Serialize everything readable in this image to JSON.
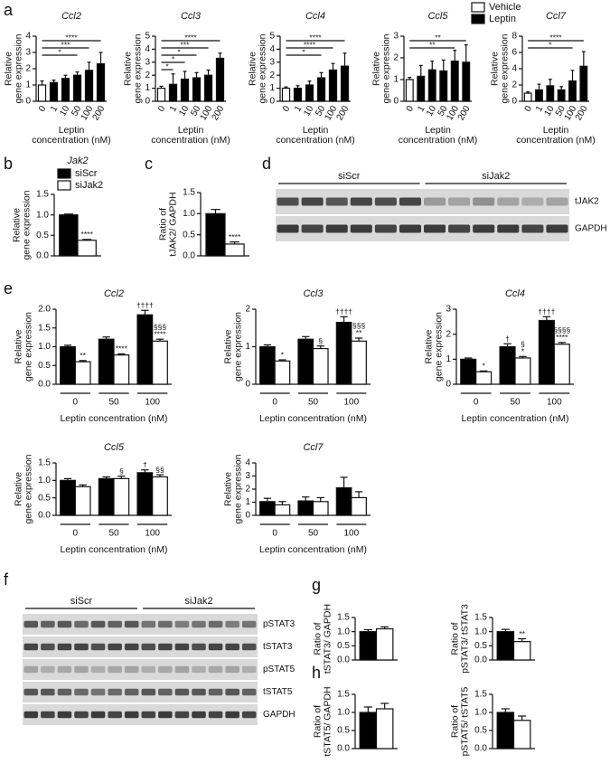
{
  "panel_labels": [
    "a",
    "b",
    "c",
    "d",
    "e",
    "f",
    "g",
    "h"
  ],
  "legend_a": [
    {
      "name": "Vehicle",
      "color": "#ffffff"
    },
    {
      "name": "Leptin",
      "color": "#000000"
    }
  ],
  "legend_b": [
    {
      "name": "siScr",
      "color": "#000000"
    },
    {
      "name": "siJak2",
      "color": "#ffffff"
    }
  ],
  "blot_d": {
    "groups": [
      "siScr",
      "siJak2"
    ],
    "rows": [
      "tJAK2",
      "GAPDH"
    ]
  },
  "blot_f": {
    "groups": [
      "siScr",
      "siJak2"
    ],
    "rows": [
      "pSTAT3",
      "tSTAT3",
      "pSTAT5",
      "tSTAT5",
      "GAPDH"
    ]
  },
  "chart_data": [
    {
      "type": "bar",
      "title": "Ccl2",
      "ylabel": [
        "Relative",
        "gene expression"
      ],
      "xlabel": [
        "Leptin",
        "concentration (nM)"
      ],
      "categories": [
        "0",
        "1",
        "10",
        "50",
        "100",
        "200"
      ],
      "ylim": [
        0,
        4
      ],
      "yticks": [
        0,
        1,
        2,
        3,
        4
      ],
      "series": [
        {
          "color": "#ffffff",
          "values": [
            1.0,
            null,
            null,
            null,
            null,
            null
          ],
          "errors": [
            0.25,
            null,
            null,
            null,
            null,
            null
          ]
        },
        {
          "color": "#000000",
          "values": [
            null,
            1.15,
            1.4,
            1.6,
            1.9,
            2.3
          ],
          "errors": [
            null,
            0.15,
            0.2,
            0.2,
            0.5,
            0.7
          ]
        }
      ],
      "brackets": [
        {
          "label": "****",
          "from": "0",
          "to": "200"
        },
        {
          "label": "***",
          "from": "0",
          "to": "100"
        },
        {
          "label": "*",
          "from": "0",
          "to": "50"
        }
      ]
    },
    {
      "type": "bar",
      "title": "Ccl3",
      "ylabel": [
        "Relative",
        "gene expression"
      ],
      "xlabel": [
        "Leptin",
        "concentration (nM)"
      ],
      "categories": [
        "0",
        "1",
        "10",
        "50",
        "100",
        "200"
      ],
      "ylim": [
        0,
        5
      ],
      "yticks": [
        0,
        1,
        2,
        3,
        4,
        5
      ],
      "series": [
        {
          "color": "#ffffff",
          "values": [
            1.0,
            null,
            null,
            null,
            null,
            null
          ],
          "errors": [
            0.15,
            null,
            null,
            null,
            null,
            null
          ]
        },
        {
          "color": "#000000",
          "values": [
            null,
            1.3,
            1.7,
            1.8,
            2.0,
            3.3
          ],
          "errors": [
            null,
            0.8,
            0.6,
            0.4,
            0.4,
            0.4
          ]
        }
      ],
      "brackets": [
        {
          "label": "****",
          "from": "0",
          "to": "200"
        },
        {
          "label": "***",
          "from": "0",
          "to": "100"
        },
        {
          "label": "*",
          "from": "0",
          "to": "50"
        },
        {
          "label": "*",
          "from": "0",
          "to": "10"
        },
        {
          "label": "*",
          "from": "0",
          "to": "1"
        }
      ]
    },
    {
      "type": "bar",
      "title": "Ccl4",
      "ylabel": [
        "Relative",
        "gene expression"
      ],
      "xlabel": [
        "Leptin",
        "concentration (nM)"
      ],
      "categories": [
        "0",
        "1",
        "10",
        "50",
        "100",
        "200"
      ],
      "ylim": [
        0,
        5
      ],
      "yticks": [
        0,
        1,
        2,
        3,
        4,
        5
      ],
      "series": [
        {
          "color": "#ffffff",
          "values": [
            1.0,
            null,
            null,
            null,
            null,
            null
          ],
          "errors": [
            0.1,
            null,
            null,
            null,
            null,
            null
          ]
        },
        {
          "color": "#000000",
          "values": [
            null,
            1.0,
            1.25,
            1.8,
            2.4,
            2.7
          ],
          "errors": [
            null,
            0.2,
            0.3,
            0.4,
            0.5,
            1.0
          ]
        }
      ],
      "brackets": [
        {
          "label": "****",
          "from": "0",
          "to": "200"
        },
        {
          "label": "****",
          "from": "0",
          "to": "100"
        },
        {
          "label": "*",
          "from": "0",
          "to": "50"
        }
      ]
    },
    {
      "type": "bar",
      "title": "Ccl5",
      "ylabel": [
        "Relative",
        "gene expression"
      ],
      "xlabel": [
        "Leptin",
        "concentration (nM)"
      ],
      "categories": [
        "0",
        "1",
        "10",
        "50",
        "100",
        "200"
      ],
      "ylim": [
        0,
        3
      ],
      "yticks": [
        0,
        1,
        2,
        3
      ],
      "series": [
        {
          "color": "#ffffff",
          "values": [
            1.0,
            null,
            null,
            null,
            null,
            null
          ],
          "errors": [
            0.1,
            null,
            null,
            null,
            null,
            null
          ]
        },
        {
          "color": "#000000",
          "values": [
            null,
            1.15,
            1.45,
            1.4,
            1.85,
            1.8
          ],
          "errors": [
            null,
            0.5,
            0.4,
            0.5,
            0.5,
            0.8
          ]
        }
      ],
      "brackets": [
        {
          "label": "**",
          "from": "0",
          "to": "200"
        },
        {
          "label": "**",
          "from": "0",
          "to": "100"
        }
      ]
    },
    {
      "type": "bar",
      "title": "Ccl7",
      "ylabel": [
        "Relative",
        "gene expression"
      ],
      "xlabel": [
        "Leptin",
        "concentration (nM)"
      ],
      "categories": [
        "0",
        "1",
        "10",
        "50",
        "100",
        "200"
      ],
      "ylim": [
        0,
        8
      ],
      "yticks": [
        0,
        2,
        4,
        6,
        8
      ],
      "series": [
        {
          "color": "#ffffff",
          "values": [
            1.0,
            null,
            null,
            null,
            null,
            null
          ],
          "errors": [
            0.15,
            null,
            null,
            null,
            null,
            null
          ]
        },
        {
          "color": "#000000",
          "values": [
            null,
            1.4,
            1.9,
            1.4,
            2.5,
            4.3
          ],
          "errors": [
            null,
            0.7,
            0.8,
            0.4,
            1.3,
            1.8
          ]
        }
      ],
      "brackets": [
        {
          "label": "****",
          "from": "0",
          "to": "200"
        },
        {
          "label": "*",
          "from": "0",
          "to": "100"
        }
      ]
    },
    {
      "type": "bar",
      "title": "Jak2",
      "ylabel": [
        "Relative",
        "gene expression"
      ],
      "ylim": [
        0,
        1.5
      ],
      "yticks": [
        {
          "value": 0,
          "label": "0.0"
        },
        {
          "value": 0.5,
          "label": "0.5"
        },
        {
          "value": 1,
          "label": "1.0"
        },
        {
          "value": 1.5,
          "label": "1.5"
        }
      ],
      "series": [
        {
          "color": "#000000",
          "values": [
            1.0
          ],
          "errors": [
            0.02
          ]
        },
        {
          "color": "#ffffff",
          "values": [
            0.38
          ],
          "errors": [
            0.02
          ],
          "annotations": [
            "****"
          ]
        }
      ]
    },
    {
      "type": "bar",
      "ylabel": [
        "Ratio of",
        "tJAK2/ GAPDH"
      ],
      "ylim": [
        0,
        1.5
      ],
      "yticks": [
        {
          "value": 0,
          "label": "0.0"
        },
        {
          "value": 0.5,
          "label": "0.5"
        },
        {
          "value": 1,
          "label": "1.0"
        },
        {
          "value": 1.5,
          "label": "1.5"
        }
      ],
      "series": [
        {
          "color": "#000000",
          "values": [
            1.0
          ],
          "errors": [
            0.1
          ]
        },
        {
          "color": "#ffffff",
          "values": [
            0.28
          ],
          "errors": [
            0.05
          ],
          "annotations": [
            "****"
          ]
        }
      ]
    },
    {
      "type": "bar",
      "title": "Ccl2",
      "ylabel": [
        "Relative",
        "gene expression"
      ],
      "xlabel": [
        "Leptin concentration (nM)"
      ],
      "categories": [
        "0",
        "50",
        "100"
      ],
      "ylim": [
        0,
        2
      ],
      "yticks": [
        {
          "value": 0,
          "label": "0.0"
        },
        {
          "value": 0.5,
          "label": "0.5"
        },
        {
          "value": 1,
          "label": "1.0"
        },
        {
          "value": 1.5,
          "label": "1.5"
        },
        {
          "value": 2,
          "label": "2.0"
        }
      ],
      "series": [
        {
          "color": "#000000",
          "values": [
            1.0,
            1.2,
            1.85
          ],
          "errors": [
            0.04,
            0.06,
            0.12
          ],
          "annotations": [
            null,
            null,
            "††††"
          ]
        },
        {
          "color": "#ffffff",
          "values": [
            0.6,
            0.78,
            1.15
          ],
          "errors": [
            0.03,
            0.03,
            0.05
          ],
          "annotations": [
            "**",
            "****",
            [
              "§§§",
              "****"
            ]
          ]
        }
      ]
    },
    {
      "type": "bar",
      "title": "Ccl3",
      "ylabel": [
        "Relative",
        "gene expression"
      ],
      "xlabel": [
        "Leptin concentration (nM)"
      ],
      "categories": [
        "0",
        "50",
        "100"
      ],
      "ylim": [
        0,
        2
      ],
      "yticks": [
        0,
        1,
        2
      ],
      "series": [
        {
          "color": "#000000",
          "values": [
            1.0,
            1.2,
            1.65
          ],
          "errors": [
            0.05,
            0.07,
            0.15
          ],
          "annotations": [
            null,
            null,
            "††††"
          ]
        },
        {
          "color": "#ffffff",
          "values": [
            0.62,
            0.95,
            1.15
          ],
          "errors": [
            0.03,
            0.07,
            0.08
          ],
          "annotations": [
            "*",
            "§",
            [
              "§§§",
              "**"
            ]
          ]
        }
      ]
    },
    {
      "type": "bar",
      "title": "Ccl4",
      "ylabel": [
        "Relative",
        "gene expression"
      ],
      "xlabel": [
        "Leptin concentration (nM)"
      ],
      "categories": [
        "0",
        "50",
        "100"
      ],
      "ylim": [
        0,
        3
      ],
      "yticks": [
        0,
        1,
        2,
        3
      ],
      "series": [
        {
          "color": "#000000",
          "values": [
            1.0,
            1.5,
            2.55
          ],
          "errors": [
            0.05,
            0.12,
            0.15
          ],
          "annotations": [
            null,
            "†",
            "††††"
          ]
        },
        {
          "color": "#ffffff",
          "values": [
            0.5,
            1.05,
            1.6
          ],
          "errors": [
            0.03,
            0.06,
            0.07
          ],
          "annotations": [
            "*",
            [
              "§",
              "*"
            ],
            [
              "§§§§",
              "****"
            ]
          ]
        }
      ]
    },
    {
      "type": "bar",
      "title": "Ccl5",
      "ylabel": [
        "Relative",
        "gene expression"
      ],
      "xlabel": [
        "Leptin concentration (nM)"
      ],
      "categories": [
        "0",
        "50",
        "100"
      ],
      "ylim": [
        0,
        1.5
      ],
      "yticks": [
        {
          "value": 0,
          "label": "0.0"
        },
        {
          "value": 0.5,
          "label": "0.5"
        },
        {
          "value": 1,
          "label": "1.0"
        },
        {
          "value": 1.5,
          "label": "1.5"
        }
      ],
      "series": [
        {
          "color": "#000000",
          "values": [
            1.0,
            1.05,
            1.22
          ],
          "errors": [
            0.05,
            0.05,
            0.08
          ],
          "annotations": [
            null,
            null,
            "†"
          ]
        },
        {
          "color": "#ffffff",
          "values": [
            0.82,
            1.05,
            1.1
          ],
          "errors": [
            0.05,
            0.07,
            0.06
          ],
          "annotations": [
            null,
            "§",
            "§§"
          ]
        }
      ]
    },
    {
      "type": "bar",
      "title": "Ccl7",
      "ylabel": [
        "Relative",
        "gene expression"
      ],
      "xlabel": [
        "Leptin concentration (nM)"
      ],
      "categories": [
        "0",
        "50",
        "100"
      ],
      "ylim": [
        0,
        4
      ],
      "yticks": [
        0,
        1,
        2,
        3,
        4
      ],
      "series": [
        {
          "color": "#000000",
          "values": [
            1.05,
            1.1,
            2.1
          ],
          "errors": [
            0.25,
            0.3,
            0.8
          ]
        },
        {
          "color": "#ffffff",
          "values": [
            0.8,
            1.05,
            1.35
          ],
          "errors": [
            0.25,
            0.3,
            0.45
          ]
        }
      ]
    },
    {
      "type": "bar",
      "ylabel": [
        "Ratio of",
        "tSTAT3/ GAPDH"
      ],
      "ylim": [
        0,
        1.5
      ],
      "yticks": [
        {
          "value": 0,
          "label": "0.0"
        },
        {
          "value": 0.5,
          "label": "0.5"
        },
        {
          "value": 1,
          "label": "1.0"
        },
        {
          "value": 1.5,
          "label": "1.5"
        }
      ],
      "series": [
        {
          "color": "#000000",
          "values": [
            1.0
          ],
          "errors": [
            0.07
          ]
        },
        {
          "color": "#ffffff",
          "values": [
            1.1
          ],
          "errors": [
            0.07
          ]
        }
      ]
    },
    {
      "type": "bar",
      "ylabel": [
        "Ratio of",
        "pSTAT3/ tSTAT3"
      ],
      "ylim": [
        0,
        1.5
      ],
      "yticks": [
        {
          "value": 0,
          "label": "0.0"
        },
        {
          "value": 0.5,
          "label": "0.5"
        },
        {
          "value": 1,
          "label": "1.0"
        },
        {
          "value": 1.5,
          "label": "1.5"
        }
      ],
      "series": [
        {
          "color": "#000000",
          "values": [
            1.0
          ],
          "errors": [
            0.08
          ]
        },
        {
          "color": "#ffffff",
          "values": [
            0.65
          ],
          "errors": [
            0.1
          ],
          "annotations": [
            "**"
          ]
        }
      ]
    },
    {
      "type": "bar",
      "ylabel": [
        "Ratio of",
        "tSTAT5/ GAPDH"
      ],
      "ylim": [
        0,
        1.5
      ],
      "yticks": [
        {
          "value": 0,
          "label": "0.0"
        },
        {
          "value": 0.5,
          "label": "0.5"
        },
        {
          "value": 1,
          "label": "1.0"
        },
        {
          "value": 1.5,
          "label": "1.5"
        }
      ],
      "series": [
        {
          "color": "#000000",
          "values": [
            1.0
          ],
          "errors": [
            0.15
          ]
        },
        {
          "color": "#ffffff",
          "values": [
            1.1
          ],
          "errors": [
            0.15
          ]
        }
      ]
    },
    {
      "type": "bar",
      "ylabel": [
        "Ratio of",
        "pSTAT5/ tSTAT5"
      ],
      "ylim": [
        0,
        1.5
      ],
      "yticks": [
        {
          "value": 0,
          "label": "0.0"
        },
        {
          "value": 0.5,
          "label": "0.5"
        },
        {
          "value": 1,
          "label": "1.0"
        },
        {
          "value": 1.5,
          "label": "1.5"
        }
      ],
      "series": [
        {
          "color": "#000000",
          "values": [
            1.0
          ],
          "errors": [
            0.1
          ]
        },
        {
          "color": "#ffffff",
          "values": [
            0.78
          ],
          "errors": [
            0.12
          ]
        }
      ]
    }
  ]
}
